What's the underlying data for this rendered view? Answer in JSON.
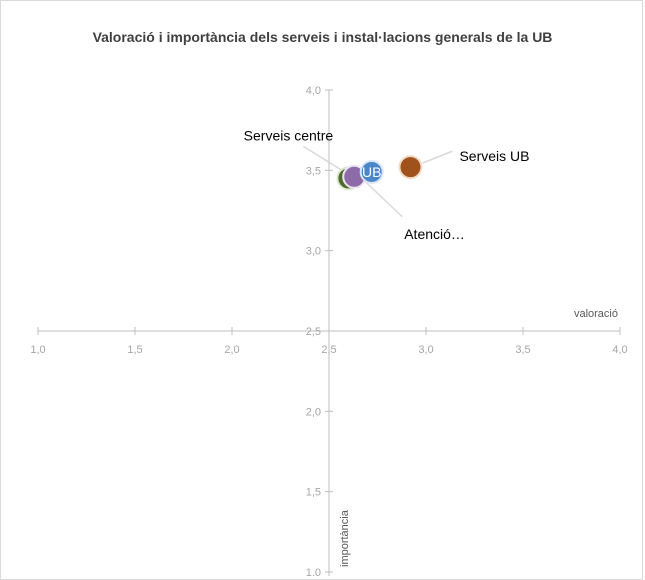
{
  "chart_data": {
    "type": "scatter",
    "title": "Valoració i importància dels serveis i instal·lacions generals de la UB",
    "xlabel": "valoració",
    "ylabel": "importància",
    "xlim": [
      1.0,
      4.0
    ],
    "ylim": [
      1.0,
      4.0
    ],
    "x_ticks": [
      "1,0",
      "1,5",
      "2,0",
      "2,5",
      "3,0",
      "3,5",
      "4,0"
    ],
    "y_ticks": [
      "1,0",
      "1,5",
      "2,0",
      "2,5",
      "3,0",
      "3,5",
      "4,0"
    ],
    "crosshair_at": [
      2.5,
      2.5
    ],
    "grid": false,
    "legend": "none",
    "points": [
      {
        "label": "UB",
        "x": 2.72,
        "y": 3.49,
        "color": "#4a86c8",
        "outline": "#d9e6f5"
      },
      {
        "label": "Serveis UB",
        "x": 2.92,
        "y": 3.52,
        "color": "#a0521d",
        "outline": "#f0dcc8"
      },
      {
        "label": "Atenció…",
        "x": 2.63,
        "y": 3.46,
        "color": "#8d6ba8",
        "outline": "#ece4f3"
      },
      {
        "label": "Serveis centre",
        "x": 2.6,
        "y": 3.45,
        "color": "#4f6b2c",
        "outline": "#dde8cf"
      }
    ]
  }
}
